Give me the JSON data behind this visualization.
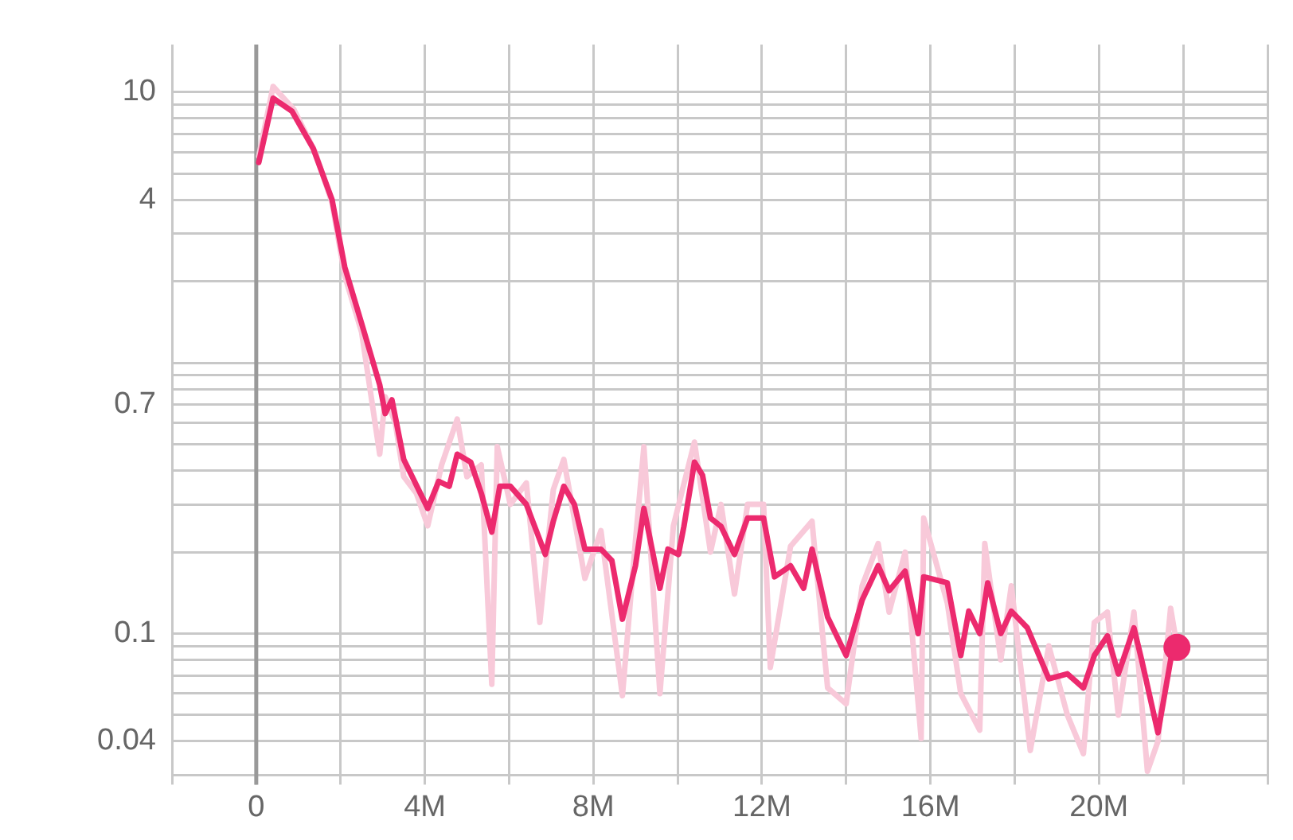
{
  "chart_data": {
    "type": "line",
    "log": "y",
    "grid": true,
    "legend": false,
    "line_style": "solid",
    "xlim": [
      -2,
      24
    ],
    "xticks": [
      {
        "value": -2,
        "label": null
      },
      0,
      {
        "value": 2,
        "label": null
      },
      {
        "value": 4,
        "label": "4M"
      },
      {
        "value": 6,
        "label": null
      },
      {
        "value": 8,
        "label": "8M"
      },
      {
        "value": 10,
        "label": null
      },
      {
        "value": 12,
        "label": "12M"
      },
      {
        "value": 14,
        "label": null
      },
      {
        "value": 16,
        "label": "16M"
      },
      {
        "value": 18,
        "label": null
      },
      {
        "value": 20,
        "label": "20M"
      },
      {
        "value": 22,
        "label": null
      },
      {
        "value": 24,
        "label": null
      }
    ],
    "ylim": [
      0.03,
      15
    ],
    "yticks": [
      {
        "value": 0.03,
        "label": null
      },
      0.04,
      {
        "value": 0.05,
        "label": null
      },
      {
        "value": 0.06,
        "label": null
      },
      {
        "value": 0.07,
        "label": null
      },
      {
        "value": 0.08,
        "label": null
      },
      {
        "value": 0.09,
        "label": null
      },
      0.1,
      {
        "value": 0.2,
        "label": null
      },
      {
        "value": 0.3,
        "label": null
      },
      {
        "value": 0.4,
        "label": null
      },
      {
        "value": 0.5,
        "label": null
      },
      {
        "value": 0.6,
        "label": null
      },
      0.7,
      {
        "value": 0.8,
        "label": null
      },
      {
        "value": 0.9,
        "label": null
      },
      {
        "value": 1,
        "label": null
      },
      {
        "value": 2,
        "label": null
      },
      {
        "value": 3,
        "label": null
      },
      4,
      {
        "value": 5,
        "label": null
      },
      {
        "value": 6,
        "label": null
      },
      {
        "value": 7,
        "label": null
      },
      {
        "value": 8,
        "label": null
      },
      {
        "value": 9,
        "label": null
      },
      10
    ],
    "ref_lines": [
      {
        "axis": "x",
        "value": 0,
        "color": "#999999"
      }
    ],
    "series": [
      {
        "type": "line",
        "color": "#f8c9d9",
        "marker": "none",
        "x": [
          0.06,
          0.4,
          0.9,
          1.4,
          1.8,
          2.1,
          2.5,
          2.93,
          3.06,
          3.3,
          3.5,
          3.8,
          4.07,
          4.4,
          4.77,
          5.0,
          5.34,
          5.59,
          5.72,
          6.03,
          6.41,
          6.73,
          7.05,
          7.3,
          7.8,
          8.18,
          8.69,
          9.0,
          9.2,
          9.58,
          9.9,
          10.4,
          10.78,
          11.03,
          11.35,
          11.66,
          12.04,
          12.2,
          12.68,
          13.19,
          13.56,
          14.0,
          14.38,
          14.76,
          15.02,
          15.4,
          15.78,
          15.84,
          16.4,
          16.72,
          17.17,
          17.29,
          17.67,
          17.92,
          18.37,
          18.81,
          19.25,
          19.63,
          19.89,
          20.2,
          20.46,
          20.83,
          21.15,
          21.4,
          21.7,
          21.85
        ],
        "values": [
          5.8,
          10.5,
          8.6,
          6.0,
          3.9,
          2.1,
          1.3,
          0.46,
          0.75,
          0.6,
          0.38,
          0.33,
          0.25,
          0.42,
          0.62,
          0.38,
          0.42,
          0.065,
          0.49,
          0.3,
          0.36,
          0.11,
          0.34,
          0.44,
          0.16,
          0.24,
          0.059,
          0.22,
          0.49,
          0.06,
          0.25,
          0.51,
          0.2,
          0.3,
          0.14,
          0.3,
          0.3,
          0.075,
          0.21,
          0.26,
          0.063,
          0.055,
          0.15,
          0.215,
          0.12,
          0.2,
          0.041,
          0.267,
          0.13,
          0.06,
          0.044,
          0.215,
          0.08,
          0.15,
          0.037,
          0.09,
          0.05,
          0.036,
          0.11,
          0.12,
          0.05,
          0.12,
          0.031,
          0.04,
          0.124,
          0.09
        ]
      },
      {
        "type": "line",
        "color": "#ec2a6e",
        "marker": "none",
        "x": [
          0.06,
          0.4,
          0.85,
          1.35,
          1.8,
          2.1,
          2.5,
          2.93,
          3.06,
          3.22,
          3.5,
          4.07,
          4.33,
          4.58,
          4.77,
          5.09,
          5.34,
          5.59,
          5.78,
          6.03,
          6.41,
          6.86,
          7.05,
          7.3,
          7.55,
          7.8,
          8.18,
          8.44,
          8.69,
          9.0,
          9.2,
          9.58,
          9.77,
          10.02,
          10.15,
          10.4,
          10.59,
          10.78,
          11.03,
          11.35,
          11.66,
          12.04,
          12.3,
          12.68,
          12.99,
          13.19,
          13.56,
          14.0,
          14.38,
          14.76,
          15.02,
          15.4,
          15.71,
          15.84,
          16.4,
          16.72,
          16.91,
          17.17,
          17.36,
          17.67,
          17.92,
          18.3,
          18.81,
          19.25,
          19.63,
          19.89,
          20.2,
          20.46,
          20.83,
          21.02,
          21.4,
          21.72,
          21.85
        ],
        "values": [
          5.5,
          9.5,
          8.5,
          6.2,
          4.0,
          2.26,
          1.4,
          0.83,
          0.65,
          0.73,
          0.44,
          0.29,
          0.365,
          0.35,
          0.46,
          0.43,
          0.33,
          0.237,
          0.35,
          0.35,
          0.3,
          0.196,
          0.26,
          0.35,
          0.3,
          0.205,
          0.205,
          0.186,
          0.113,
          0.178,
          0.29,
          0.147,
          0.205,
          0.196,
          0.249,
          0.43,
          0.385,
          0.267,
          0.249,
          0.196,
          0.267,
          0.267,
          0.162,
          0.178,
          0.147,
          0.205,
          0.115,
          0.083,
          0.133,
          0.178,
          0.144,
          0.17,
          0.1,
          0.162,
          0.154,
          0.083,
          0.121,
          0.1,
          0.154,
          0.1,
          0.121,
          0.105,
          0.068,
          0.071,
          0.063,
          0.083,
          0.098,
          0.071,
          0.105,
          0.079,
          0.043,
          0.083,
          0.089
        ]
      },
      {
        "type": "scatter",
        "color": "#ec2a6e",
        "marker": "circle",
        "x": [
          21.85
        ],
        "values": [
          0.089
        ]
      }
    ]
  }
}
